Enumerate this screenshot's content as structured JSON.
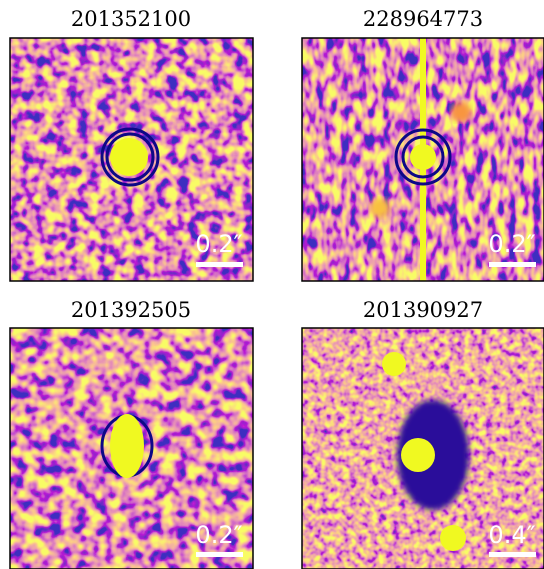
{
  "panels": [
    {
      "title": "201352100",
      "scale_label": "0.2″"
    },
    {
      "title": "228964773",
      "scale_label": "0.2″"
    },
    {
      "title": "201392505",
      "scale_label": "0.2″"
    },
    {
      "title": "201390927",
      "scale_label": "0.4″"
    }
  ]
}
